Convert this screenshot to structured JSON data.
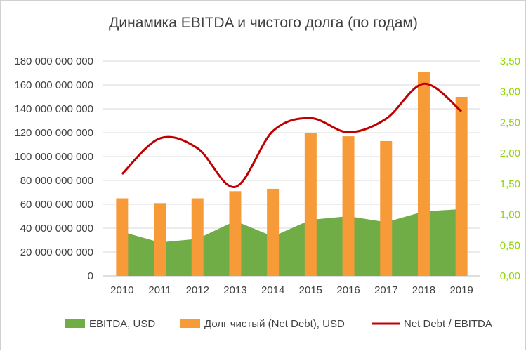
{
  "chart_data": {
    "type": "bar",
    "title": "Динамика EBITDA и чистого долга (по годам)",
    "categories": [
      "2010",
      "2011",
      "2012",
      "2013",
      "2014",
      "2015",
      "2016",
      "2017",
      "2018",
      "2019"
    ],
    "series": [
      {
        "name": "EBITDA, USD",
        "kind": "area",
        "axis": "left",
        "color": "#70ad47",
        "values": [
          37000000000,
          28000000000,
          31000000000,
          46000000000,
          33000000000,
          47000000000,
          50000000000,
          45000000000,
          54000000000,
          56000000000
        ]
      },
      {
        "name": "Долг чистый (Net Debt), USD",
        "kind": "bar",
        "axis": "left",
        "color": "#f79a38",
        "values": [
          65000000000,
          61000000000,
          65000000000,
          71000000000,
          73000000000,
          120000000000,
          117000000000,
          113000000000,
          171000000000,
          150000000000
        ]
      },
      {
        "name": "Net Debt / EBITDA",
        "kind": "line",
        "axis": "right",
        "color": "#c00000",
        "values": [
          1.66,
          2.24,
          2.08,
          1.45,
          2.36,
          2.57,
          2.34,
          2.56,
          3.13,
          2.68
        ]
      }
    ],
    "ylim": [
      0,
      180000000000
    ],
    "y2lim": [
      0,
      3.5
    ],
    "yticks": [
      "0",
      "20 000 000 000",
      "40 000 000 000",
      "60 000 000 000",
      "80 000 000 000",
      "100 000 000 000",
      "120 000 000 000",
      "140 000 000 000",
      "160 000 000 000",
      "180 000 000 000"
    ],
    "y2ticks": [
      "0,00",
      "0,50",
      "1,00",
      "1,50",
      "2,00",
      "2,50",
      "3,00",
      "3,50"
    ],
    "grid": true,
    "legend": "bottom"
  }
}
